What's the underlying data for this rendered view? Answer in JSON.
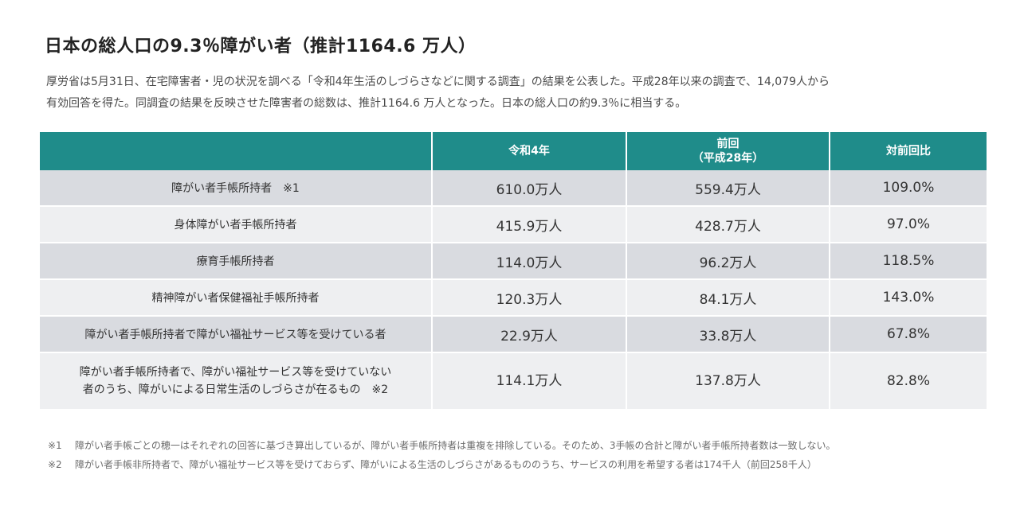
{
  "title": "日本の総人口の9.3％障がい者（推計1164.6 万人）",
  "intro": {
    "line1": "厚労省は5月31日、在宅障害者・児の状況を調べる「令和4年生活のしづらさなどに関する調査」の結果を公表した。平成28年以来の調査で、14,079人から",
    "line2": "有効回答を得た。同調査の結果を反映させた障害者の総数は、推計1164.6 万人となった。日本の総人口の約9.3％に相当する。"
  },
  "table": {
    "headers": {
      "current": "令和4年",
      "previous_line1": "前回",
      "previous_line2": "（平成28年）",
      "ratio": "対前回比"
    },
    "rows": [
      {
        "category": "障がい者手帳所持者　※1",
        "current": "610.0万人",
        "previous": "559.4万人",
        "ratio": "109.0%"
      },
      {
        "category": "身体障がい者手帳所持者",
        "current": "415.9万人",
        "previous": "428.7万人",
        "ratio": "97.0%"
      },
      {
        "category": "療育手帳所持者",
        "current": "114.0万人",
        "previous": "96.2万人",
        "ratio": "118.5%"
      },
      {
        "category": "精神障がい者保健福祉手帳所持者",
        "current": "120.3万人",
        "previous": "84.1万人",
        "ratio": "143.0%"
      },
      {
        "category": "障がい者手帳所持者で障がい福祉サービス等を受けている者",
        "current": "22.9万人",
        "previous": "33.8万人",
        "ratio": "67.8%"
      },
      {
        "category_line1": "障がい者手帳所持者で、障がい福祉サービス等を受けていない",
        "category_line2": "者のうち、障がいによる日常生活のしづらさが在るもの　※2",
        "current": "114.1万人",
        "previous": "137.8万人",
        "ratio": "82.8%"
      }
    ]
  },
  "notes": [
    {
      "mark": "※1",
      "text": "障がい者手帳ごとの穂一はそれぞれの回答に基づき算出しているが、障がい者手帳所持者は重複を排除している。そのため、3手帳の合計と障がい者手帳所持者数は一致しない。"
    },
    {
      "mark": "※2",
      "text": "障がい者手帳非所持者で、障がい福祉サービス等を受けておらず、障がいによる生活のしづらさがあるもののうち、サービスの利用を希望する者は174千人（前回258千人）"
    }
  ],
  "colors": {
    "header_bg": "#1f8c8a",
    "row_dark": "#d9dbe0",
    "row_light": "#eeeff1",
    "title_text": "#222222",
    "note_text": "#6b6b6b"
  }
}
